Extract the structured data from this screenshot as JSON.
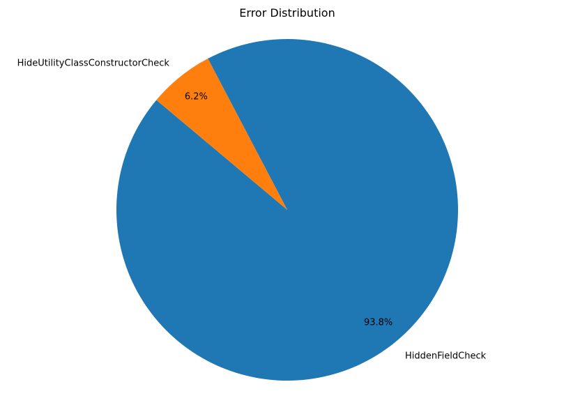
{
  "chart_data": {
    "type": "pie",
    "title": "Error Distribution",
    "slices": [
      {
        "label": "HiddenFieldCheck",
        "value": 93.8,
        "pct_label": "93.8%",
        "color": "#1f77b4"
      },
      {
        "label": "HideUtilityClassConstructorCheck",
        "value": 6.2,
        "pct_label": "6.2%",
        "color": "#ff7f0e"
      }
    ],
    "start_angle_deg": 140,
    "direction": "counterclockwise",
    "legend": "none"
  }
}
